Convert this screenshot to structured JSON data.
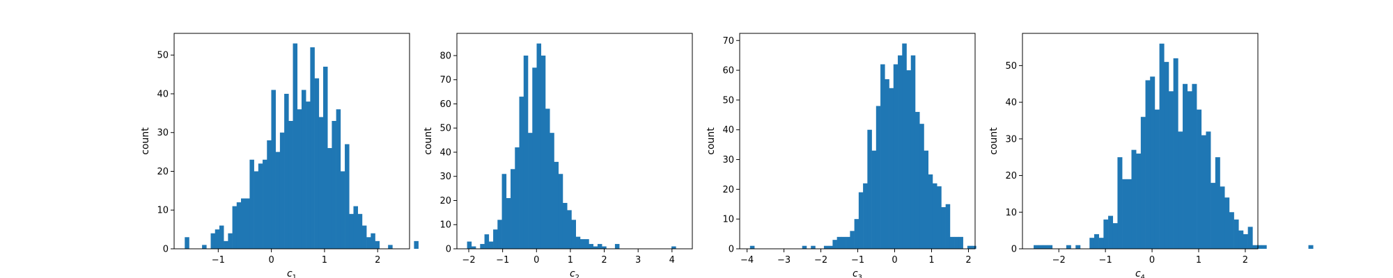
{
  "chart_data": [
    {
      "type": "bar",
      "subtype": "histogram",
      "xlabel": "c",
      "xlabel_subscript": "1",
      "ylabel": "count",
      "xlim": [
        -1.83,
        2.6
      ],
      "ylim": [
        0,
        55.6
      ],
      "xticks": [
        -1,
        0,
        1,
        2
      ],
      "xtick_labels": [
        "−1",
        "0",
        "1",
        "2"
      ],
      "yticks": [
        0,
        10,
        20,
        30,
        40,
        50
      ],
      "ytick_labels": [
        "0",
        "10",
        "20",
        "30",
        "40",
        "50"
      ],
      "bin_start": -1.63,
      "bin_width": 0.0814,
      "counts": [
        3,
        0,
        0,
        0,
        1,
        0,
        4,
        5,
        6,
        2,
        4,
        11,
        12,
        13,
        13,
        23,
        20,
        22,
        23,
        28,
        41,
        25,
        30,
        40,
        33,
        53,
        36,
        41,
        38,
        52,
        44,
        34,
        47,
        26,
        33,
        36,
        20,
        27,
        9,
        11,
        9,
        6,
        3,
        4,
        2,
        0,
        0,
        1,
        0,
        0,
        0,
        0,
        0,
        2
      ],
      "color": "#1f77b4",
      "grid": false
    },
    {
      "type": "bar",
      "subtype": "histogram",
      "xlabel": "c",
      "xlabel_subscript": "2",
      "ylabel": "count",
      "xlim": [
        -2.35,
        4.6
      ],
      "ylim": [
        0,
        89.2
      ],
      "xticks": [
        -2,
        -1,
        0,
        1,
        2,
        3,
        4
      ],
      "xtick_labels": [
        "−2",
        "−1",
        "0",
        "1",
        "2",
        "3",
        "4"
      ],
      "yticks": [
        0,
        10,
        20,
        30,
        40,
        50,
        60,
        70,
        80
      ],
      "ytick_labels": [
        "0",
        "10",
        "20",
        "30",
        "40",
        "50",
        "60",
        "70",
        "80"
      ],
      "bin_start": -2.05,
      "bin_width": 0.1284,
      "counts": [
        3,
        1,
        0,
        2,
        6,
        3,
        8,
        12,
        31,
        21,
        33,
        42,
        63,
        80,
        48,
        75,
        85,
        80,
        58,
        48,
        36,
        31,
        19,
        16,
        12,
        5,
        4,
        4,
        2,
        1,
        2,
        1,
        0,
        0,
        2,
        0,
        0,
        0,
        0,
        0,
        0,
        0,
        0,
        0,
        0,
        0,
        0,
        1
      ],
      "color": "#1f77b4",
      "grid": false
    },
    {
      "type": "bar",
      "subtype": "histogram",
      "xlabel": "c",
      "xlabel_subscript": "3",
      "ylabel": "count",
      "xlim": [
        -4.2,
        2.18
      ],
      "ylim": [
        0,
        72.4
      ],
      "xticks": [
        -4,
        -3,
        -2,
        -1,
        0,
        1,
        2
      ],
      "xtick_labels": [
        "−4",
        "−3",
        "−2",
        "−1",
        "0",
        "1",
        "2"
      ],
      "yticks": [
        0,
        10,
        20,
        30,
        40,
        50,
        60,
        70
      ],
      "ytick_labels": [
        "0",
        "10",
        "20",
        "30",
        "40",
        "50",
        "60",
        "70"
      ],
      "bin_start": -3.92,
      "bin_width": 0.1178,
      "counts": [
        1,
        0,
        0,
        0,
        0,
        0,
        0,
        0,
        0,
        0,
        0,
        0,
        1,
        0,
        1,
        0,
        0,
        1,
        1,
        3,
        4,
        4,
        4,
        6,
        10,
        19,
        22,
        40,
        33,
        48,
        62,
        57,
        54,
        62,
        65,
        69,
        60,
        65,
        46,
        42,
        33,
        25,
        22,
        21,
        14,
        15,
        4,
        4,
        4,
        0,
        1,
        1
      ],
      "color": "#1f77b4",
      "grid": false
    },
    {
      "type": "bar",
      "subtype": "histogram",
      "xlabel": "c",
      "xlabel_subscript": "4",
      "ylabel": "count",
      "xlim": [
        -2.78,
        2.27
      ],
      "ylim": [
        0,
        58.8
      ],
      "xticks": [
        -2,
        -1,
        0,
        1,
        2
      ],
      "xtick_labels": [
        "−2",
        "−1",
        "0",
        "1",
        "2"
      ],
      "yticks": [
        0,
        10,
        20,
        30,
        40,
        50
      ],
      "ytick_labels": [
        "0",
        "10",
        "20",
        "30",
        "40",
        "50"
      ],
      "bin_start": -2.54,
      "bin_width": 0.0999,
      "counts": [
        1,
        1,
        1,
        1,
        0,
        0,
        0,
        1,
        0,
        1,
        0,
        0,
        3,
        4,
        3,
        8,
        9,
        7,
        25,
        19,
        19,
        27,
        26,
        36,
        46,
        47,
        38,
        56,
        51,
        43,
        52,
        32,
        45,
        43,
        45,
        38,
        31,
        32,
        18,
        25,
        17,
        14,
        10,
        8,
        5,
        4,
        6,
        1,
        1,
        1,
        0,
        0,
        0,
        0,
        0,
        0,
        0,
        0,
        0,
        1
      ],
      "color": "#1f77b4",
      "grid": false
    }
  ]
}
